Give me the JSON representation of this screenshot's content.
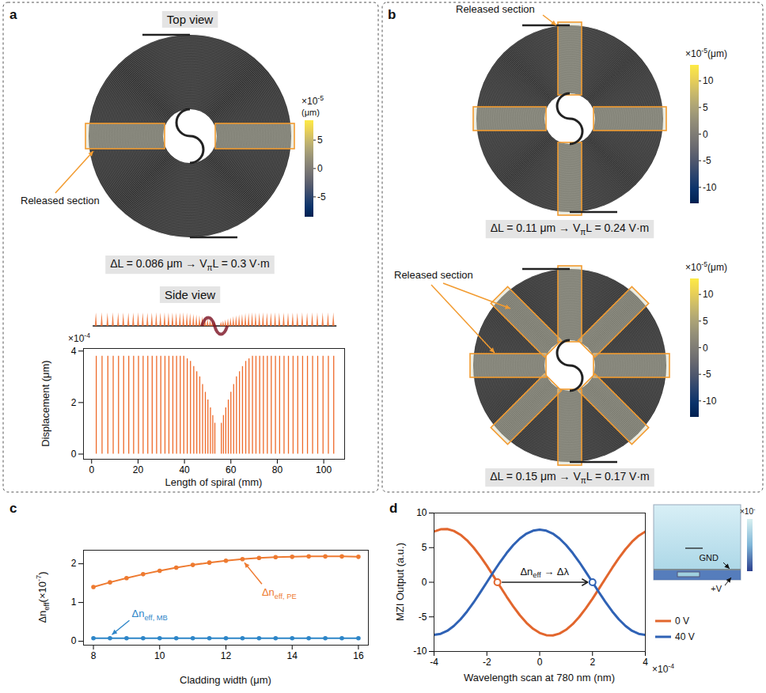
{
  "figure": {
    "a": {
      "letter": "a",
      "top_view_title": "Top view",
      "side_view_title": "Side view",
      "spirals": [
        {
          "released_sections": 2,
          "released_label": "Released section",
          "colorbar": {
            "label": [
              "×10",
              {
                "sup": "-5"
              }
            ],
            "unit": "(μm)",
            "range": [
              -8.5,
              8.5
            ],
            "ticks": [
              -5,
              0,
              5
            ]
          },
          "caption": [
            "ΔL = 0.086 μm → V",
            {
              "sub": "π"
            },
            "L = 0.3 V·m"
          ]
        }
      ]
    },
    "b": {
      "letter": "b",
      "spirals": [
        {
          "released_sections": 4,
          "released_label": "Released section",
          "colorbar": {
            "label": [
              "×10",
              {
                "sup": "-5"
              }
            ],
            "unit": "(μm)",
            "range": [
              -13,
              13
            ],
            "ticks": [
              -10,
              -5,
              0,
              5,
              10
            ]
          },
          "caption": [
            "ΔL = 0.11 μm → V",
            {
              "sub": "π"
            },
            "L = 0.24 V·m"
          ]
        },
        {
          "released_sections": 8,
          "released_label": "Released section",
          "colorbar": {
            "label": [
              "×10",
              {
                "sup": "-5"
              }
            ],
            "unit": "(μm)",
            "range": [
              -13,
              13
            ],
            "ticks": [
              -10,
              -5,
              0,
              5,
              10
            ]
          },
          "caption": [
            "ΔL = 0.15 μm → V",
            {
              "sub": "π"
            },
            "L = 0.17 V·m"
          ]
        }
      ]
    },
    "c": {
      "letter": "c"
    },
    "d": {
      "letter": "d",
      "inset": {
        "labels": [
          "GND",
          "+V"
        ],
        "colorbar_label": [
          "×10",
          {
            "sup": "-"
          }
        ]
      }
    }
  },
  "chart_data": [
    {
      "panel": "a",
      "type": "rule",
      "x_label": "Length of spiral (mm)",
      "y_label": "Displacement (μm)",
      "y_exponent": [
        "×10",
        {
          "sup": "-4"
        }
      ],
      "x": [
        2,
        4.5,
        7,
        9.3,
        11.6,
        13.8,
        16,
        18.1,
        20.2,
        22.2,
        24.2,
        26.1,
        28,
        29.8,
        31.6,
        33.3,
        35,
        36.6,
        38.2,
        39.7,
        41.2,
        42.6,
        44,
        45.3,
        46.6,
        47.8,
        49,
        50.1,
        51.2,
        52.2,
        53.1,
        55.9,
        56.8,
        57.8,
        58.9,
        60,
        61.2,
        62.4,
        63.7,
        65,
        66.4,
        67.8,
        69.3,
        70.8,
        72.4,
        74,
        75.7,
        77.4,
        79.2,
        81,
        82.9,
        84.8,
        86.8,
        88.8,
        90.9,
        93,
        95.2,
        97.4,
        99.7,
        102,
        104.3
      ],
      "values": [
        3.8,
        3.8,
        3.8,
        3.8,
        3.8,
        3.8,
        3.8,
        3.8,
        3.8,
        3.8,
        3.8,
        3.8,
        3.8,
        3.8,
        3.8,
        3.8,
        3.8,
        3.8,
        3.8,
        3.8,
        3.7,
        3.6,
        3.4,
        3.2,
        3.0,
        2.7,
        2.4,
        2.1,
        1.8,
        1.5,
        1.2,
        1.2,
        1.5,
        1.8,
        2.1,
        2.4,
        2.7,
        3.0,
        3.2,
        3.4,
        3.6,
        3.7,
        3.8,
        3.8,
        3.8,
        3.8,
        3.8,
        3.8,
        3.8,
        3.8,
        3.8,
        3.8,
        3.8,
        3.8,
        3.8,
        3.8,
        3.8,
        3.8,
        3.8,
        3.8,
        3.8
      ],
      "color": "#ee6a2a",
      "xlim": [
        -3.5,
        109
      ],
      "xticks": [
        0,
        20,
        40,
        60,
        80,
        100
      ],
      "ylim": [
        -0.2,
        4.1
      ],
      "yticks": [
        0,
        2,
        4
      ]
    },
    {
      "panel": "c",
      "type": "line",
      "marker": "circle",
      "x_label": "Cladding width (μm)",
      "y_label": [
        "Δn",
        {
          "sub": "eff"
        },
        "(×10",
        {
          "sup": "-7"
        },
        ")"
      ],
      "x": [
        8,
        8.5,
        9,
        9.5,
        10,
        10.5,
        11,
        11.5,
        12,
        12.5,
        13,
        13.5,
        14,
        14.5,
        15,
        15.5,
        16
      ],
      "series": [
        {
          "name": [
            "Δn",
            {
              "sub": "eff, PE"
            }
          ],
          "color": "#ee7a30",
          "values": [
            1.4,
            1.52,
            1.63,
            1.73,
            1.82,
            1.9,
            1.97,
            2.03,
            2.08,
            2.12,
            2.15,
            2.17,
            2.18,
            2.19,
            2.19,
            2.19,
            2.18
          ]
        },
        {
          "name": [
            "Δn",
            {
              "sub": "eff, MB"
            }
          ],
          "color": "#2e86c8",
          "values": [
            0.08,
            0.08,
            0.08,
            0.08,
            0.08,
            0.08,
            0.08,
            0.08,
            0.08,
            0.08,
            0.08,
            0.08,
            0.08,
            0.08,
            0.08,
            0.08,
            0.08
          ]
        }
      ],
      "xlim": [
        7.7,
        16.3
      ],
      "xticks": [
        8,
        10,
        12,
        14,
        16
      ],
      "ylim": [
        -0.1,
        2.35
      ],
      "yticks": [
        0,
        1,
        2
      ]
    },
    {
      "panel": "d",
      "type": "line",
      "x_label": "Wavelength scan at 780 nm (nm)",
      "x_exponent": [
        "×10",
        {
          "sup": "-4"
        }
      ],
      "y_label": "MZI Output (a.u.)",
      "x": [
        -4,
        -3.75,
        -3.5,
        -3.25,
        -3,
        -2.75,
        -2.5,
        -2.25,
        -2,
        -1.75,
        -1.5,
        -1.25,
        -1,
        -0.75,
        -0.5,
        -0.25,
        0,
        0.25,
        0.5,
        0.75,
        1,
        1.25,
        1.5,
        1.75,
        2,
        2.25,
        2.5,
        2.75,
        3,
        3.25,
        3.5,
        3.75,
        4
      ],
      "series": [
        {
          "name": "0 V",
          "color": "#e2662d",
          "values": [
            7.32,
            7.65,
            7.68,
            7.41,
            6.86,
            6.05,
            5.0,
            3.76,
            2.38,
            0.9,
            -0.6,
            -2.09,
            -3.5,
            -4.77,
            -5.86,
            -6.72,
            -7.32,
            -7.65,
            -7.68,
            -7.41,
            -6.86,
            -6.05,
            -5.0,
            -3.76,
            -2.38,
            -0.9,
            0.6,
            2.09,
            3.5,
            4.77,
            5.86,
            6.72,
            7.32
          ]
        },
        {
          "name": "40 V",
          "color": "#2f62b5",
          "values": [
            -7.6,
            -7.45,
            -7.02,
            -6.32,
            -5.37,
            -4.22,
            -2.91,
            -1.48,
            0,
            1.48,
            2.91,
            4.22,
            5.37,
            6.32,
            7.02,
            7.45,
            7.6,
            7.45,
            7.02,
            6.32,
            5.37,
            4.22,
            2.91,
            1.48,
            0,
            -1.48,
            -2.91,
            -4.22,
            -5.37,
            -6.32,
            -7.02,
            -7.45,
            -7.6
          ]
        }
      ],
      "highlighted_points": [
        {
          "series": "0 V",
          "x": -1.6,
          "y": 0
        },
        {
          "series": "40 V",
          "x": 2,
          "y": 0
        }
      ],
      "annotation": [
        "Δn",
        {
          "sub": "eff"
        },
        " → Δλ"
      ],
      "xlim": [
        -4,
        4
      ],
      "xticks": [
        -4,
        -2,
        0,
        2,
        4
      ],
      "ylim": [
        -10,
        10
      ],
      "yticks": [
        -10,
        -5,
        0,
        5,
        10
      ],
      "legend": "right"
    }
  ]
}
